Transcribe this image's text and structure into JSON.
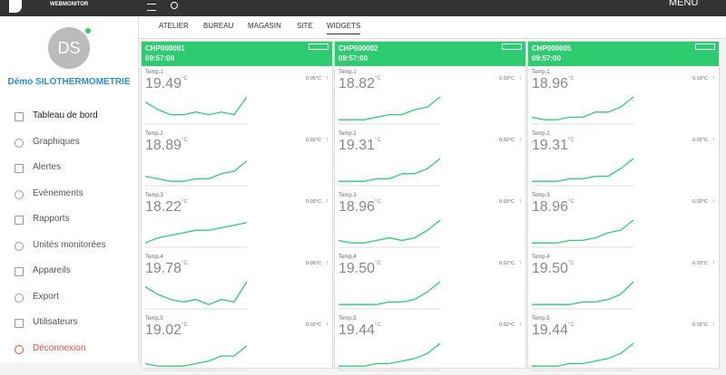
{
  "header": {
    "brand": "WEBMONITOR",
    "menu": "MENU"
  },
  "sidebar": {
    "initials": "DS",
    "user": "Démo SILOTHERMOMETRIE",
    "active_item": 0,
    "items": [
      "Tableau de bord",
      "Graphiques",
      "Alertes",
      "Evénements",
      "Rapports",
      "Unités monitorées",
      "Appareils",
      "Export",
      "Utilisateurs",
      "Déconnexion"
    ]
  },
  "tabs": {
    "items": [
      "ATELIER",
      "BUREAU",
      "MAGASIN",
      "SITE",
      "WIDGETS"
    ],
    "active": 4
  },
  "widgets": [
    {
      "id": "CHP000001",
      "time": "09:57:00",
      "sensors": [
        {
          "label": "Temp.1",
          "value": "19.49",
          "unit": "°C",
          "delta": "0.05°C",
          "trend": [
            8,
            5,
            3,
            3,
            4,
            3,
            4,
            3,
            10
          ]
        },
        {
          "label": "Temp.2",
          "value": "18.89",
          "unit": "°C",
          "delta": "0.02°C",
          "trend": [
            3,
            2,
            1,
            1,
            2,
            2,
            4,
            5,
            9
          ]
        },
        {
          "label": "Temp.3",
          "value": "18.22",
          "unit": "°C",
          "delta": "0.00°C",
          "trend": [
            1,
            3,
            4,
            5,
            6,
            6,
            7,
            8,
            9
          ]
        },
        {
          "label": "Temp.4",
          "value": "19.78",
          "unit": "°C",
          "delta": "0.06°C",
          "trend": [
            8,
            5,
            3,
            2,
            3,
            1,
            3,
            2,
            10
          ]
        },
        {
          "label": "Temp.5",
          "value": "19.02",
          "unit": "°C",
          "delta": "0.02°C",
          "trend": [
            2,
            1,
            1,
            1,
            2,
            3,
            5,
            5,
            9
          ]
        }
      ]
    },
    {
      "id": "CHP000002",
      "time": "09:57:00",
      "sensors": [
        {
          "label": "Temp.1",
          "value": "18.82",
          "unit": "°C",
          "delta": "0.03°C",
          "trend": [
            1,
            1,
            1,
            2,
            3,
            3,
            5,
            6,
            10
          ]
        },
        {
          "label": "Temp.2",
          "value": "19.31",
          "unit": "°C",
          "delta": "0.02°C",
          "trend": [
            1,
            1,
            1,
            2,
            2,
            4,
            4,
            6,
            10
          ]
        },
        {
          "label": "Temp.3",
          "value": "18.96",
          "unit": "°C",
          "delta": "0.03°C",
          "trend": [
            2,
            1,
            1,
            2,
            3,
            2,
            3,
            6,
            10
          ]
        },
        {
          "label": "Temp.4",
          "value": "19.50",
          "unit": "°C",
          "delta": "0.02°C",
          "trend": [
            1,
            1,
            1,
            1,
            2,
            2,
            3,
            6,
            10
          ]
        },
        {
          "label": "Temp.5",
          "value": "19.44",
          "unit": "°C",
          "delta": "0.02°C",
          "trend": [
            1,
            1,
            1,
            2,
            2,
            3,
            4,
            6,
            10
          ]
        }
      ]
    },
    {
      "id": "CHP000005",
      "time": "09:57:00",
      "sensors": [
        {
          "label": "Temp.1",
          "value": "18.96",
          "unit": "°C",
          "delta": "0.03°C",
          "trend": [
            2,
            1,
            1,
            2,
            2,
            4,
            4,
            6,
            10
          ]
        },
        {
          "label": "Temp.2",
          "value": "19.31",
          "unit": "°C",
          "delta": "0.02°C",
          "trend": [
            1,
            1,
            1,
            2,
            2,
            3,
            3,
            6,
            10
          ]
        },
        {
          "label": "Temp.3",
          "value": "18.96",
          "unit": "°C",
          "delta": "0.02°C",
          "trend": [
            1,
            1,
            1,
            2,
            2,
            3,
            5,
            6,
            10
          ]
        },
        {
          "label": "Temp.4",
          "value": "19.50",
          "unit": "°C",
          "delta": "0.03°C",
          "trend": [
            1,
            1,
            1,
            1,
            2,
            2,
            3,
            5,
            10
          ]
        },
        {
          "label": "Temp.5",
          "value": "19.44",
          "unit": "°C",
          "delta": "0.02°C",
          "trend": [
            1,
            1,
            1,
            2,
            2,
            3,
            4,
            6,
            10
          ]
        }
      ]
    }
  ]
}
